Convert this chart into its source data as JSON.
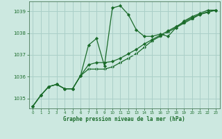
{
  "title": "Graphe pression niveau de la mer (hPa)",
  "background_color": "#cce8e0",
  "grid_color": "#aacfc8",
  "line_color": "#1a6b2a",
  "marker_color": "#1a6b2a",
  "xlim": [
    -0.5,
    23.5
  ],
  "ylim": [
    1034.55,
    1039.45
  ],
  "yticks": [
    1035,
    1036,
    1037,
    1038,
    1039
  ],
  "xticks": [
    0,
    1,
    2,
    3,
    4,
    5,
    6,
    7,
    8,
    9,
    10,
    11,
    12,
    13,
    14,
    15,
    16,
    17,
    18,
    19,
    20,
    21,
    22,
    23
  ],
  "series1_x": [
    0,
    1,
    2,
    3,
    4,
    5,
    6,
    7,
    8,
    9,
    10,
    11,
    12,
    13,
    14,
    15,
    16,
    17,
    18,
    19,
    20,
    21,
    22,
    23
  ],
  "series1_y": [
    1034.65,
    1035.15,
    1035.55,
    1035.65,
    1035.45,
    1035.45,
    1036.05,
    1037.45,
    1037.75,
    1036.5,
    1039.15,
    1039.25,
    1038.85,
    1038.15,
    1037.85,
    1037.85,
    1037.95,
    1037.85,
    1038.25,
    1038.55,
    1038.75,
    1038.9,
    1039.05,
    1039.05
  ],
  "series2_x": [
    0,
    1,
    2,
    3,
    4,
    5,
    6,
    7,
    8,
    9,
    10,
    11,
    12,
    13,
    14,
    15,
    16,
    17,
    18,
    19,
    20,
    21,
    22,
    23
  ],
  "series2_y": [
    1034.65,
    1035.15,
    1035.55,
    1035.65,
    1035.45,
    1035.45,
    1036.05,
    1036.55,
    1036.65,
    1036.65,
    1036.7,
    1036.85,
    1037.05,
    1037.25,
    1037.5,
    1037.7,
    1037.9,
    1038.1,
    1038.3,
    1038.5,
    1038.7,
    1038.85,
    1038.95,
    1039.05
  ],
  "series3_x": [
    0,
    1,
    2,
    3,
    4,
    5,
    6,
    7,
    8,
    9,
    10,
    11,
    12,
    13,
    14,
    15,
    16,
    17,
    18,
    19,
    20,
    21,
    22,
    23
  ],
  "series3_y": [
    1034.65,
    1035.15,
    1035.55,
    1035.65,
    1035.45,
    1035.45,
    1036.05,
    1036.35,
    1036.35,
    1036.35,
    1036.45,
    1036.65,
    1036.85,
    1037.05,
    1037.35,
    1037.65,
    1037.85,
    1038.05,
    1038.25,
    1038.45,
    1038.65,
    1038.85,
    1038.98,
    1039.05
  ]
}
